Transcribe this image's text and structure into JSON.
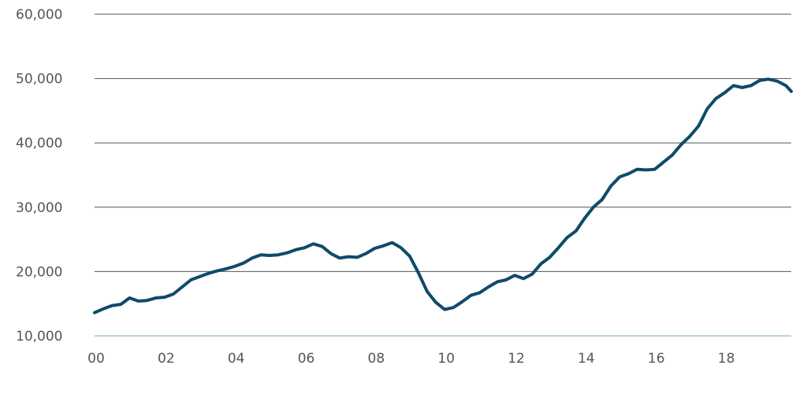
{
  "chart_data": {
    "type": "line",
    "title": "",
    "xlabel": "",
    "ylabel": "",
    "xlim": [
      2000,
      2019.9
    ],
    "ylim": [
      10000,
      60000
    ],
    "grid": true,
    "legend": "none",
    "x_ticks": [
      {
        "value": 2000,
        "label": "00"
      },
      {
        "value": 2002,
        "label": "02"
      },
      {
        "value": 2004,
        "label": "04"
      },
      {
        "value": 2006,
        "label": "06"
      },
      {
        "value": 2008,
        "label": "08"
      },
      {
        "value": 2010,
        "label": "10"
      },
      {
        "value": 2012,
        "label": "12"
      },
      {
        "value": 2014,
        "label": "14"
      },
      {
        "value": 2016,
        "label": "16"
      },
      {
        "value": 2018,
        "label": "18"
      }
    ],
    "y_ticks": [
      {
        "value": 10000,
        "label": "10,000"
      },
      {
        "value": 20000,
        "label": "20,000"
      },
      {
        "value": 30000,
        "label": "30,000"
      },
      {
        "value": 40000,
        "label": "40,000"
      },
      {
        "value": 50000,
        "label": "50,000"
      },
      {
        "value": 60000,
        "label": "60,000"
      }
    ],
    "colors": {
      "line": "#0e4b69",
      "grid": "#555555",
      "baseline": "#b9d3e3",
      "tick_text": "#555555"
    },
    "series": [
      {
        "x": [
          2000.0,
          2000.25,
          2000.5,
          2000.75,
          2001.0,
          2001.25,
          2001.5,
          2001.75,
          2002.0,
          2002.25,
          2002.5,
          2002.75,
          2003.0,
          2003.25,
          2003.5,
          2003.75,
          2004.0,
          2004.25,
          2004.5,
          2004.75,
          2005.0,
          2005.25,
          2005.5,
          2005.75,
          2006.0,
          2006.25,
          2006.5,
          2006.75,
          2007.0,
          2007.25,
          2007.5,
          2007.75,
          2008.0,
          2008.25,
          2008.5,
          2008.75,
          2009.0,
          2009.25,
          2009.5,
          2009.75,
          2010.0,
          2010.25,
          2010.5,
          2010.75,
          2011.0,
          2011.25,
          2011.5,
          2011.75,
          2012.0,
          2012.25,
          2012.5,
          2012.75,
          2013.0,
          2013.25,
          2013.5,
          2013.75,
          2014.0,
          2014.25,
          2014.5,
          2014.75,
          2015.0,
          2015.25,
          2015.5,
          2015.75,
          2016.0,
          2016.25,
          2016.5,
          2016.75,
          2017.0,
          2017.25,
          2017.5,
          2017.75,
          2018.0,
          2018.25,
          2018.5,
          2018.75,
          2019.0,
          2019.25,
          2019.5,
          2019.75,
          2019.9
        ],
        "values": [
          13600,
          14200,
          14700,
          14900,
          15900,
          15400,
          15500,
          15900,
          16000,
          16500,
          17600,
          18700,
          19200,
          19700,
          20100,
          20400,
          20800,
          21300,
          22100,
          22600,
          22500,
          22600,
          22900,
          23400,
          23700,
          24300,
          23900,
          22800,
          22100,
          22300,
          22200,
          22800,
          23600,
          24000,
          24500,
          23700,
          22400,
          19800,
          16900,
          15200,
          14100,
          14400,
          15300,
          16300,
          16700,
          17600,
          18400,
          18700,
          19400,
          18900,
          19600,
          21200,
          22200,
          23700,
          25300,
          26300,
          28300,
          30000,
          31200,
          33300,
          34700,
          35200,
          35900,
          35800,
          35900,
          37000,
          38100,
          39700,
          41000,
          42600,
          45300,
          46900,
          47800,
          48900,
          48600,
          48900,
          49700,
          49900,
          49600,
          48900,
          48000
        ]
      }
    ]
  }
}
